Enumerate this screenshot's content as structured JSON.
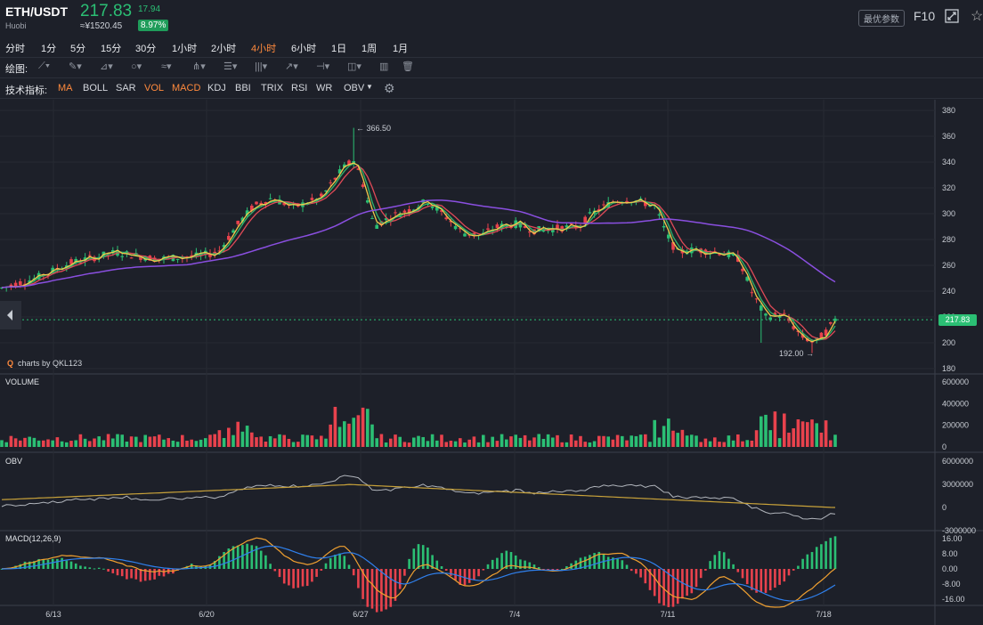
{
  "header": {
    "pair": "ETH/USDT",
    "exchange": "Huobi",
    "price": "217.83",
    "change": "17.94",
    "cny": "≈¥1520.45",
    "change_pct": "8.97%",
    "latest_params": "最优参数",
    "f10": "F10"
  },
  "intervals": [
    "分时",
    "1分",
    "5分",
    "15分",
    "30分",
    "1小时",
    "2小时",
    "4小时",
    "6小时",
    "1日",
    "1周",
    "1月"
  ],
  "active_interval": "4小时",
  "drawing": {
    "label": "绘图:",
    "tools": [
      "line-tool-icon",
      "pen-tool-icon",
      "channel-tool-icon",
      "shape-tool-icon",
      "wave-tool-icon",
      "pitchfork-tool-icon",
      "fib-tool-icon",
      "gann-tool-icon",
      "arrow-tool-icon",
      "measure-tool-icon",
      "label-tool-icon",
      "ruler-tool-icon",
      "trash-icon"
    ]
  },
  "indicators": {
    "label": "技术指标:",
    "items": [
      "MA",
      "BOLL",
      "SAR",
      "VOL",
      "MACD",
      "KDJ",
      "BBI",
      "TRIX",
      "RSI",
      "WR",
      "OBV"
    ],
    "active": [
      "MA",
      "VOL",
      "MACD"
    ]
  },
  "colors": {
    "up": "#2bbf74",
    "down": "#e8424d",
    "ma5": "#f2c94c",
    "ma10": "#2fb56b",
    "ma30": "#e04a57",
    "ma60": "#8a4fe0",
    "macd_dif": "#f0a030",
    "macd_dea": "#2f80ed"
  },
  "main": {
    "y_ticks": [
      "380",
      "360",
      "340",
      "320",
      "300",
      "280",
      "260",
      "240",
      "220",
      "200",
      "180"
    ],
    "high_label": "366.50",
    "low_label": "192.00",
    "last_price": "217.83",
    "brand": "charts by QKL123"
  },
  "volume": {
    "title": "VOLUME",
    "ticks": [
      "600000",
      "400000",
      "200000",
      "0"
    ]
  },
  "obv": {
    "title": "OBV",
    "ticks": [
      "6000000",
      "3000000",
      "0",
      "-3000000"
    ]
  },
  "macd": {
    "title": "MACD(12,26,9)",
    "ticks": [
      "16.00",
      "8.00",
      "0.00",
      "-8.00",
      "-16.00"
    ]
  },
  "x_ticks": [
    "6/13",
    "6/20",
    "6/27",
    "7/4",
    "7/11",
    "7/18"
  ],
  "chart_data": {
    "type": "line",
    "title": "",
    "x": [
      "6/13",
      "6/20",
      "6/27",
      "7/4",
      "7/11",
      "7/18"
    ],
    "series": [
      {
        "name": "",
        "values": [
          255,
          268,
          330,
          292,
          300,
          205
        ]
      }
    ],
    "ylim": [
      180,
      380
    ],
    "high": 366.5,
    "low": 192.0,
    "last": 217.83
  }
}
